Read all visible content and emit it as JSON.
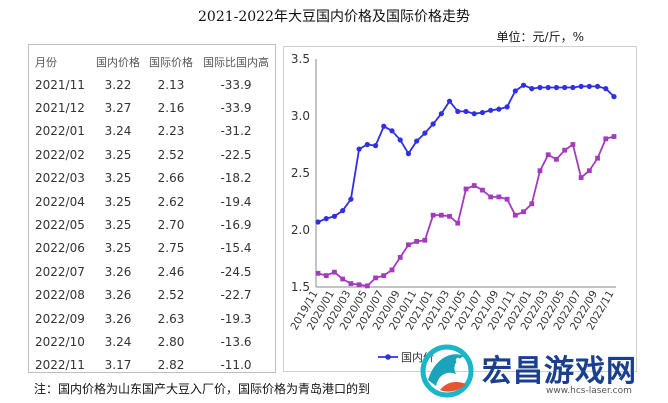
{
  "title": "2021-2022年大豆国内价格及国际价格走势",
  "unit": "单位：元/斤，%",
  "table": {
    "headers": [
      "月份",
      "国内价格",
      "国际价格",
      "国际比国内高"
    ],
    "rows": [
      [
        "2021/11",
        "3.22",
        "2.13",
        "-33.9"
      ],
      [
        "2021/12",
        "3.27",
        "2.16",
        "-33.9"
      ],
      [
        "2022/01",
        "3.24",
        "2.23",
        "-31.2"
      ],
      [
        "2022/02",
        "3.25",
        "2.52",
        "-22.5"
      ],
      [
        "2022/03",
        "3.25",
        "2.66",
        "-18.2"
      ],
      [
        "2022/04",
        "3.25",
        "2.62",
        "-19.4"
      ],
      [
        "2022/05",
        "3.25",
        "2.70",
        "-16.9"
      ],
      [
        "2022/06",
        "3.25",
        "2.75",
        "-15.4"
      ],
      [
        "2022/07",
        "3.26",
        "2.46",
        "-24.5"
      ],
      [
        "2022/08",
        "3.26",
        "2.52",
        "-22.7"
      ],
      [
        "2022/09",
        "3.26",
        "2.63",
        "-19.3"
      ],
      [
        "2022/10",
        "3.24",
        "2.80",
        "-13.6"
      ],
      [
        "2022/11",
        "3.17",
        "2.82",
        "-11.0"
      ]
    ]
  },
  "chart_data": {
    "type": "line",
    "title": "",
    "xlabel": "",
    "ylabel": "",
    "ylim": [
      1.5,
      3.5
    ],
    "yticks": [
      1.5,
      2.0,
      2.5,
      3.0,
      3.5
    ],
    "yticklabels": [
      "1.5",
      "2.0",
      "2.5",
      "3.0",
      "3.5"
    ],
    "xticklabels": [
      "2019/11",
      "2020/01",
      "2020/03",
      "2020/05",
      "2020/07",
      "2020/09",
      "2020/11",
      "2021/01",
      "2021/03",
      "2021/05",
      "2021/07",
      "2021/09",
      "2021/11",
      "2022/01",
      "2022/03",
      "2022/05",
      "2022/07",
      "2022/09",
      "2022/11"
    ],
    "x": [
      "2019/11",
      "2019/12",
      "2020/01",
      "2020/02",
      "2020/03",
      "2020/04",
      "2020/05",
      "2020/06",
      "2020/07",
      "2020/08",
      "2020/09",
      "2020/10",
      "2020/11",
      "2020/12",
      "2021/01",
      "2021/02",
      "2021/03",
      "2021/04",
      "2021/05",
      "2021/06",
      "2021/07",
      "2021/08",
      "2021/09",
      "2021/10",
      "2021/11",
      "2021/12",
      "2022/01",
      "2022/02",
      "2022/03",
      "2022/04",
      "2022/05",
      "2022/06",
      "2022/07",
      "2022/08",
      "2022/09",
      "2022/10",
      "2022/11"
    ],
    "series": [
      {
        "name": "国内价格",
        "color": "#2f2fe6",
        "marker": "circle",
        "values": [
          2.07,
          2.1,
          2.12,
          2.17,
          2.27,
          2.71,
          2.75,
          2.74,
          2.91,
          2.87,
          2.79,
          2.67,
          2.78,
          2.85,
          2.93,
          3.02,
          3.13,
          3.04,
          3.04,
          3.02,
          3.03,
          3.05,
          3.06,
          3.08,
          3.22,
          3.27,
          3.24,
          3.25,
          3.25,
          3.25,
          3.25,
          3.25,
          3.26,
          3.26,
          3.26,
          3.24,
          3.17
        ]
      },
      {
        "name": "国际价格",
        "color": "#a43bbf",
        "marker": "square",
        "values": [
          1.62,
          1.6,
          1.63,
          1.57,
          1.53,
          1.52,
          1.51,
          1.58,
          1.6,
          1.65,
          1.76,
          1.87,
          1.9,
          1.91,
          2.13,
          2.13,
          2.12,
          2.06,
          2.36,
          2.39,
          2.35,
          2.29,
          2.29,
          2.27,
          2.13,
          2.16,
          2.23,
          2.52,
          2.66,
          2.62,
          2.7,
          2.75,
          2.46,
          2.52,
          2.63,
          2.8,
          2.82
        ]
      }
    ],
    "legend": "bottom",
    "grid": false
  },
  "legend_visible_label": "国内价",
  "footnote": "注：国内价格为山东国产大豆入厂价，国际价格为青岛港口的到",
  "watermark": {
    "title": "宏昌游戏网",
    "url": "www.hcs-laser.com"
  }
}
